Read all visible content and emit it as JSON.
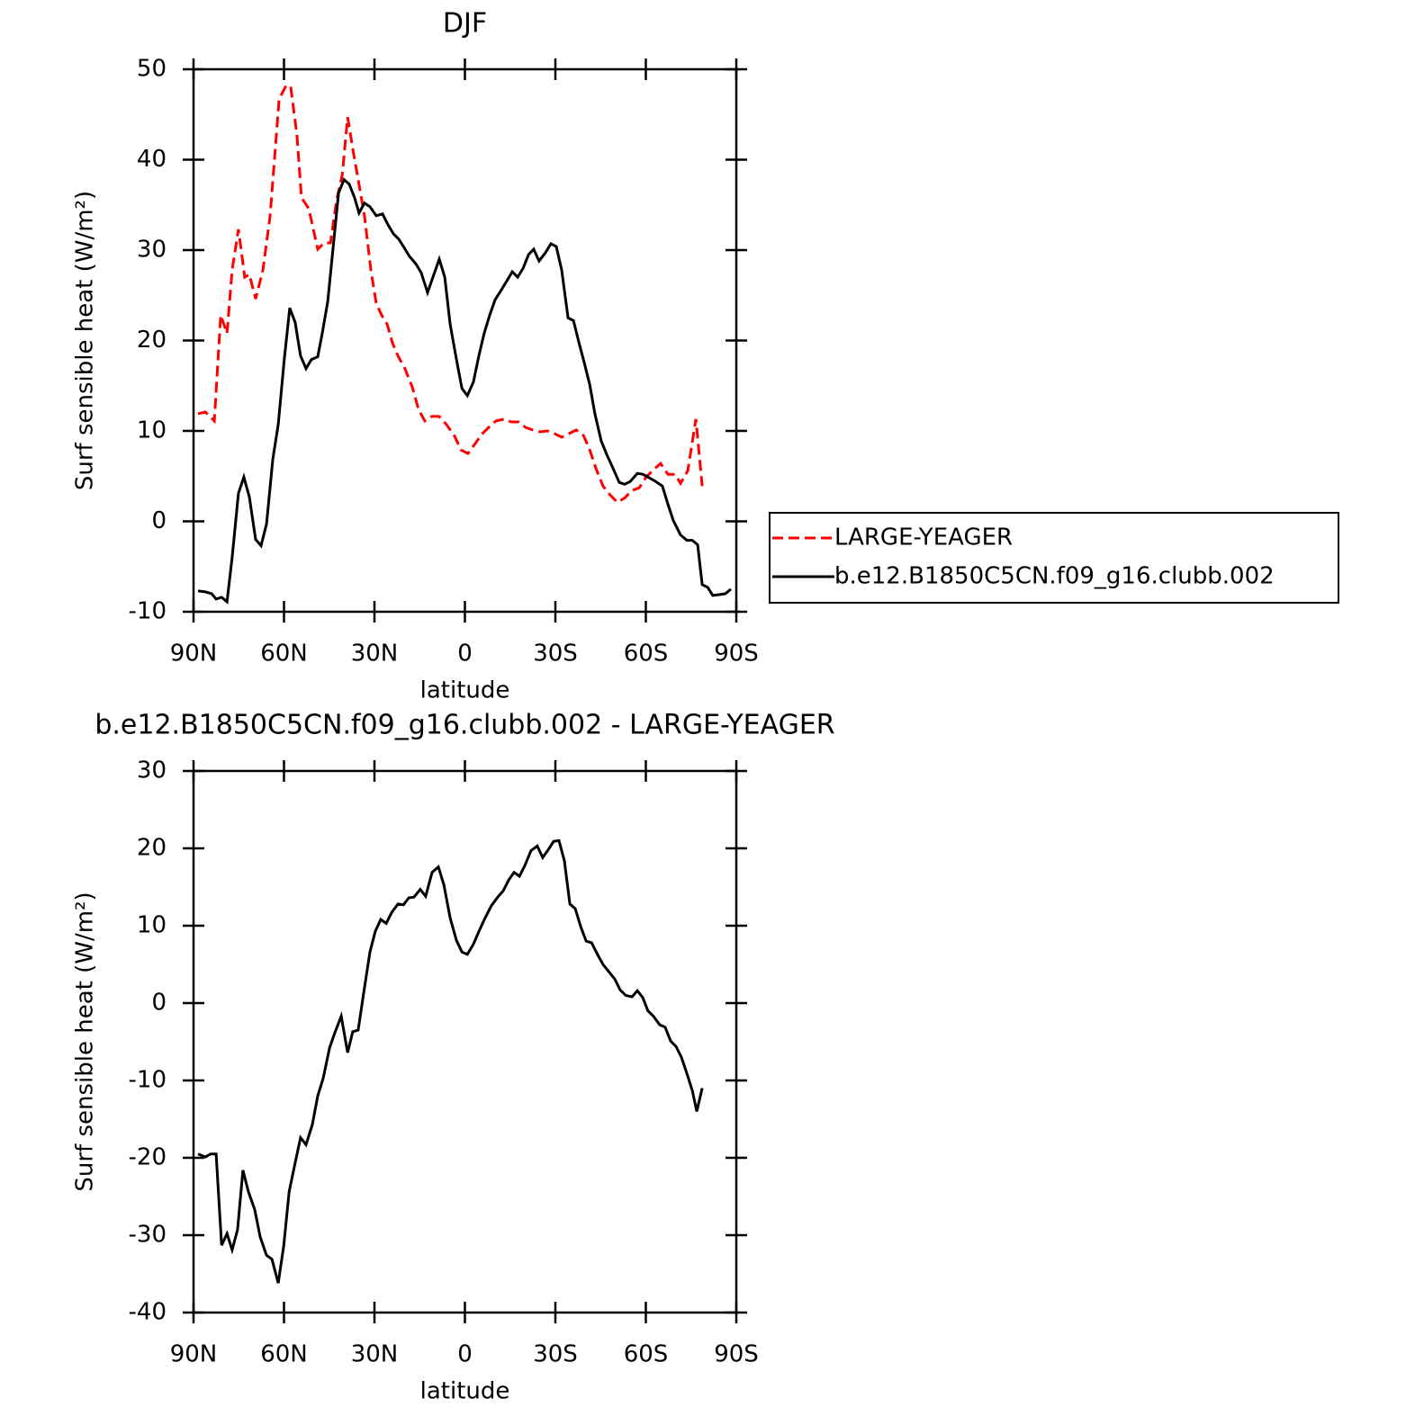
{
  "chart_data": [
    {
      "type": "line",
      "title": "DJF",
      "xlabel": "latitude",
      "ylabel": "Surf sensible heat (W/m²)",
      "xlim": [
        90,
        -90
      ],
      "xticks": [
        {
          "value": 90,
          "label": "90N"
        },
        {
          "value": 60,
          "label": "60N"
        },
        {
          "value": 30,
          "label": "30N"
        },
        0,
        {
          "value": -30,
          "label": "30S"
        },
        {
          "value": -60,
          "label": "60S"
        },
        {
          "value": -90,
          "label": "90S"
        }
      ],
      "ylim": [
        -10,
        50
      ],
      "yticks": [
        -10,
        0,
        10,
        20,
        30,
        40,
        50
      ],
      "legend": "right",
      "series": [
        {
          "name": "LARGE-YEAGER",
          "color": "#ff0000",
          "dashed": true,
          "x": [
            88.5,
            86.1,
            83.1,
            81,
            78.9,
            77.2,
            75.1,
            73,
            71.5,
            69.4,
            67,
            64.6,
            61.6,
            59.3,
            57.8,
            55.7,
            54.2,
            51.8,
            48.8,
            46.7,
            44.6,
            42.5,
            40.7,
            38.9,
            37.2,
            35.4,
            33.3,
            31.2,
            29.4,
            27.6,
            25.8,
            24,
            22.2,
            19.9,
            17.5,
            15.4,
            13.3,
            11,
            8.5,
            6.1,
            3.4,
            1.3,
            -1,
            -3.4,
            -5.5,
            -7.9,
            -10.3,
            -13,
            -15.4,
            -17.8,
            -20.1,
            -22.5,
            -24.9,
            -27.3,
            -29.7,
            -32.1,
            -34.5,
            -36.9,
            -39.3,
            -41.4,
            -43.4,
            -45.8,
            -48.2,
            -50.6,
            -53,
            -55.4,
            -57.8,
            -60.1,
            -62.5,
            -64.9,
            -67.3,
            -69.7,
            -71.5,
            -73.9,
            -76.6,
            -78.7
          ],
          "values": [
            11.9,
            12.1,
            11.1,
            22.8,
            20.8,
            27.8,
            32.3,
            27,
            27.3,
            24.6,
            27.8,
            33.8,
            46.7,
            48.2,
            48.1,
            42.7,
            35.8,
            34.6,
            30.1,
            30.8,
            30.8,
            35.6,
            38.3,
            44.7,
            41.2,
            37.8,
            33.8,
            27.8,
            24.1,
            22.8,
            21.8,
            19.7,
            18.3,
            16.9,
            14.9,
            12.4,
            11.1,
            11.6,
            11.6,
            10.7,
            9.4,
            7.9,
            7.5,
            8.6,
            9.6,
            10.4,
            11.1,
            11.3,
            11,
            11,
            10.4,
            10.1,
            9.9,
            10,
            9.7,
            9.3,
            9.7,
            10.1,
            9.5,
            7.9,
            5.9,
            3.9,
            2.9,
            2.1,
            2.6,
            3.4,
            3.7,
            4.9,
            5.7,
            6.4,
            5.2,
            5.2,
            4.2,
            5.6,
            11.3,
            3.9
          ]
        },
        {
          "name": "b.e12.B1850C5CN.f09_g16.clubb.002",
          "color": "#000000",
          "dashed": false,
          "x": [
            88.5,
            86.1,
            84,
            82.5,
            80.7,
            78.9,
            77.2,
            75.1,
            73.3,
            71.5,
            69.4,
            67.6,
            65.8,
            63.7,
            61.9,
            59.9,
            58.1,
            56.3,
            54.5,
            52.7,
            50.9,
            48.8,
            47.3,
            45.5,
            43.7,
            41.9,
            40.1,
            38.4,
            36.6,
            35.1,
            33.3,
            31.5,
            29.4,
            27.3,
            25.5,
            23.7,
            21.9,
            20.2,
            18.4,
            16.3,
            14.5,
            12.4,
            10.3,
            8.5,
            6.7,
            4.9,
            2.8,
            1,
            -0.8,
            -2.8,
            -4.7,
            -6.4,
            -8.2,
            -10,
            -12.1,
            -13.9,
            -15.7,
            -17.5,
            -19.3,
            -21.1,
            -22.8,
            -24.6,
            -26.7,
            -28.5,
            -30.3,
            -32.1,
            -34.2,
            -36,
            -37.8,
            -39.6,
            -41.4,
            -43.1,
            -45.2,
            -47,
            -48.8,
            -51.2,
            -53,
            -54.8,
            -57.2,
            -59,
            -60.7,
            -62.8,
            -65.5,
            -67.3,
            -69.1,
            -71.5,
            -73.6,
            -75.4,
            -77.2,
            -78.7,
            -80.5,
            -82.2,
            -84.6,
            -86.4,
            -88.2
          ],
          "values": [
            -7.7,
            -7.8,
            -8,
            -8.6,
            -8.4,
            -8.9,
            -4,
            3.1,
            4.9,
            2.7,
            -2,
            -2.7,
            -0.3,
            6.9,
            10.7,
            17.9,
            23.6,
            22,
            18.3,
            16.9,
            17.9,
            18.2,
            20.8,
            24.3,
            30.3,
            36.3,
            37.8,
            37.3,
            35.8,
            34.1,
            35.2,
            34.8,
            33.8,
            34,
            32.8,
            31.8,
            31.2,
            30.3,
            29.3,
            28.5,
            27.5,
            25.3,
            27.3,
            29,
            27,
            21.8,
            17.9,
            14.7,
            13.9,
            15.4,
            18.4,
            20.8,
            22.8,
            24.5,
            25.6,
            26.6,
            27.6,
            27,
            28,
            29.5,
            30.1,
            28.8,
            29.7,
            30.7,
            30.4,
            27.8,
            22.5,
            22.2,
            19.8,
            17.5,
            15.1,
            11.9,
            8.9,
            7.4,
            6.1,
            4.3,
            4.1,
            4.4,
            5.3,
            5.2,
            4.9,
            4.5,
            3.9,
            1.9,
            0.1,
            -1.5,
            -2.1,
            -2.1,
            -2.6,
            -7,
            -7.3,
            -8.2,
            -8.1,
            -8,
            -7.5
          ]
        }
      ]
    },
    {
      "type": "line",
      "title": "b.e12.B1850C5CN.f09_g16.clubb.002 - LARGE-YEAGER",
      "xlabel": "latitude",
      "ylabel": "Surf sensible heat (W/m²)",
      "xlim": [
        90,
        -90
      ],
      "xticks": [
        {
          "value": 90,
          "label": "90N"
        },
        {
          "value": 60,
          "label": "60N"
        },
        {
          "value": 30,
          "label": "30N"
        },
        0,
        {
          "value": -30,
          "label": "30S"
        },
        {
          "value": -60,
          "label": "60S"
        },
        {
          "value": -90,
          "label": "90S"
        }
      ],
      "ylim": [
        -40,
        30
      ],
      "yticks": [
        -40,
        -30,
        -20,
        -10,
        0,
        10,
        20,
        30
      ],
      "color": "#000000",
      "x": [
        88.5,
        86.1,
        84.3,
        82.5,
        80.7,
        78.9,
        77.2,
        75.4,
        73.6,
        71.8,
        69.7,
        67.9,
        65.8,
        64,
        61.9,
        60.1,
        58.3,
        56.6,
        54.5,
        52.7,
        50.6,
        48.8,
        47,
        44.9,
        43.1,
        41,
        38.9,
        37.2,
        35.4,
        33.6,
        31.5,
        29.7,
        27.9,
        26.1,
        24.3,
        22.2,
        20.4,
        18.6,
        16.9,
        14.8,
        13,
        10.9,
        8.8,
        7,
        4.9,
        2.8,
        1,
        -0.8,
        -2.8,
        -4.7,
        -6.7,
        -8.8,
        -10.9,
        -12.7,
        -14.5,
        -16.3,
        -18.1,
        -19.9,
        -21.9,
        -24,
        -25.8,
        -27.6,
        -29.4,
        -31.2,
        -33,
        -34.8,
        -36.6,
        -38.4,
        -40.2,
        -42,
        -44.1,
        -45.8,
        -47.6,
        -49.7,
        -51.5,
        -53.3,
        -55.4,
        -57.2,
        -59,
        -60.7,
        -62.5,
        -64.6,
        -66.4,
        -68.2,
        -70,
        -71.8,
        -73.6,
        -75.4,
        -76.9,
        -78.7
      ],
      "values": [
        -19.5,
        -19.9,
        -19.5,
        -19.5,
        -31.3,
        -29.8,
        -31.9,
        -29.3,
        -21.6,
        -24.4,
        -26.7,
        -30.2,
        -32.6,
        -33.1,
        -36.2,
        -31.4,
        -24.4,
        -21.2,
        -17.4,
        -18.3,
        -15.7,
        -12,
        -9.7,
        -5.8,
        -3.8,
        -1.7,
        -6.4,
        -3.7,
        -3.5,
        1.2,
        6.6,
        9.3,
        10.8,
        10.3,
        11.7,
        12.8,
        12.7,
        13.6,
        13.7,
        14.7,
        13.8,
        16.9,
        17.6,
        15.3,
        11,
        8.1,
        6.6,
        6.3,
        7.6,
        9.3,
        11,
        12.6,
        13.7,
        14.5,
        15.9,
        16.9,
        16.4,
        17.8,
        19.7,
        20.3,
        18.8,
        19.8,
        20.9,
        21,
        18.4,
        12.8,
        12.2,
        9.9,
        8,
        7.8,
        6.2,
        5,
        4.1,
        3.1,
        1.7,
        1,
        0.8,
        1.6,
        0.7,
        -1,
        -1.7,
        -2.8,
        -3.1,
        -4.9,
        -5.6,
        -7,
        -9.1,
        -11.3,
        -14,
        -11
      ]
    }
  ]
}
